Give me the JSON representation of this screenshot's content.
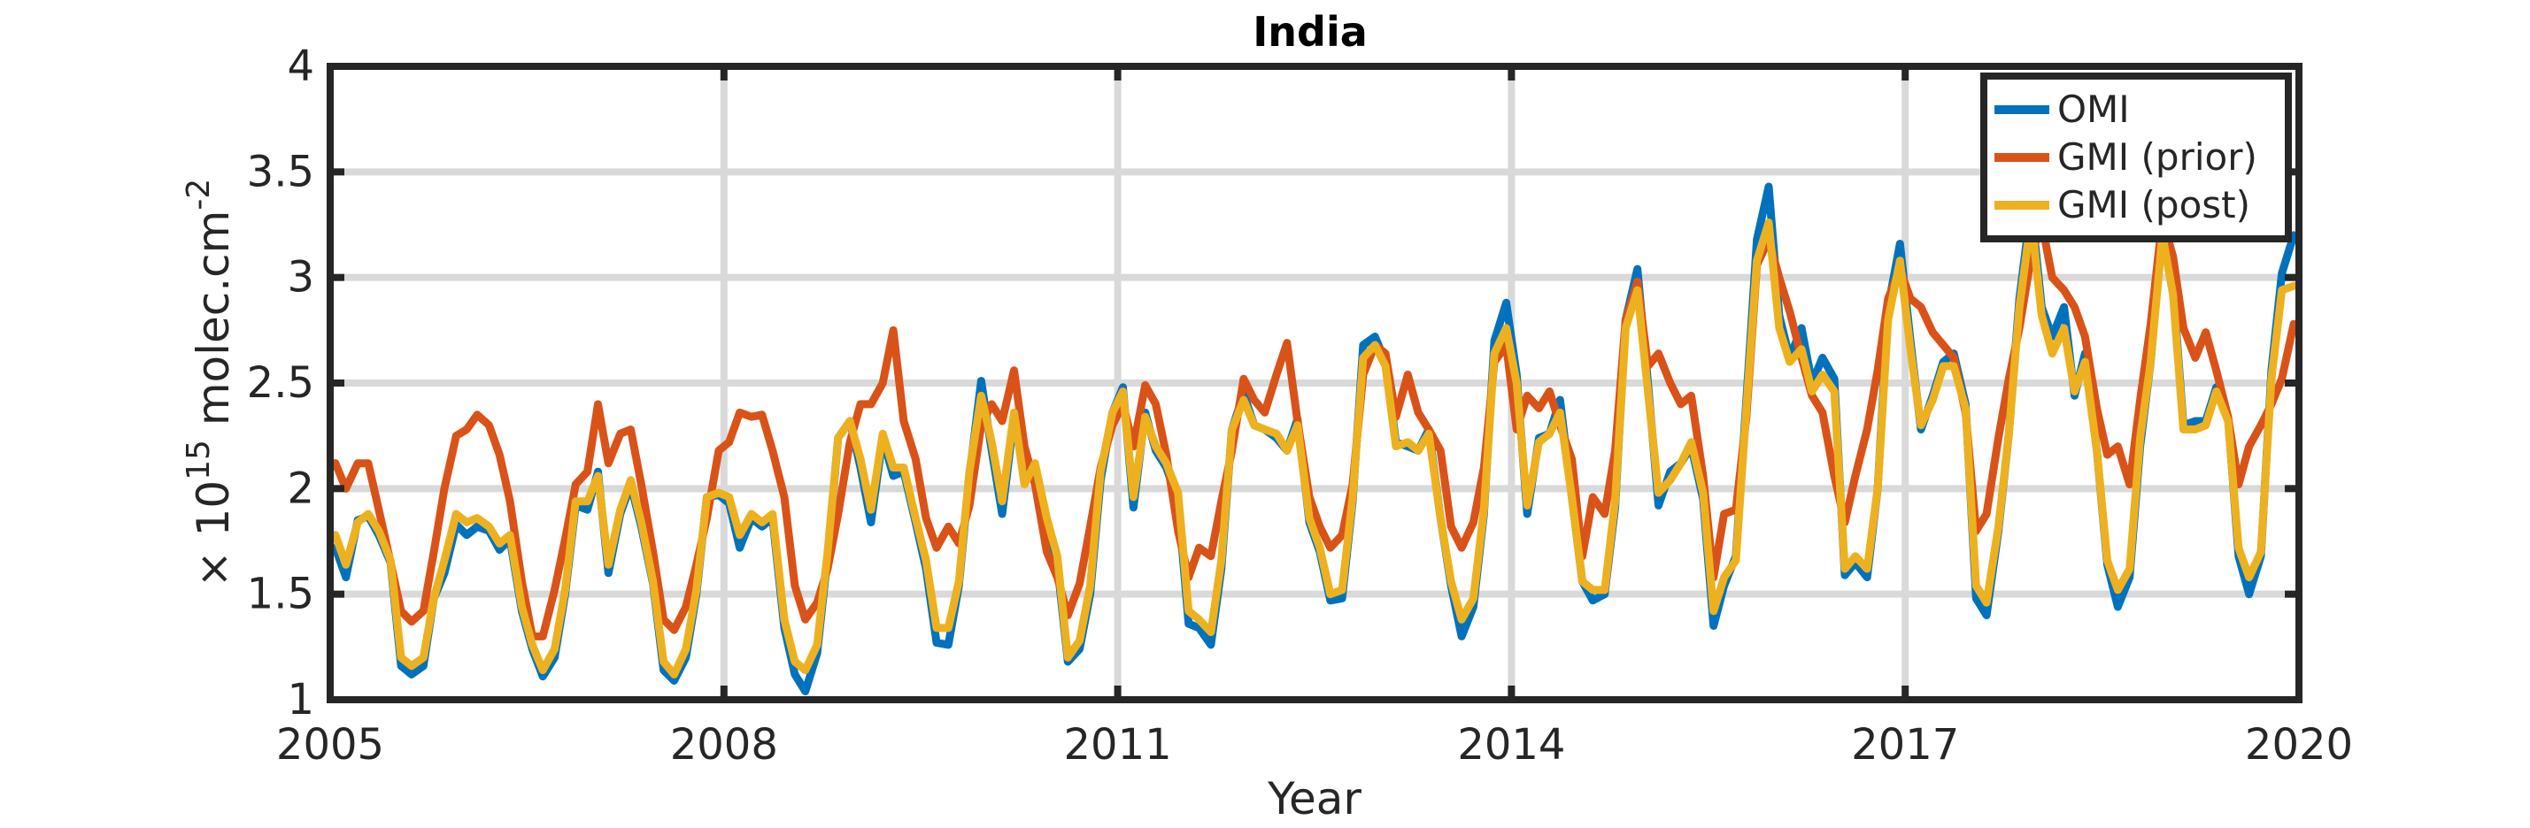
{
  "chart_data": {
    "type": "line",
    "title": "India",
    "xlabel": "Year",
    "ylabel": {
      "prefix": "× 10",
      "exponent": "15",
      "unit": " molec.cm",
      "unit_exponent": "-2"
    },
    "xlim": [
      2005,
      2020
    ],
    "ylim": [
      1,
      4
    ],
    "xticks": [
      2005,
      2008,
      2011,
      2014,
      2017,
      2020
    ],
    "yticks": [
      1,
      1.5,
      2,
      2.5,
      3,
      3.5,
      4
    ],
    "ytick_labels": [
      "1",
      "1.5",
      "2",
      "2.5",
      "3",
      "3.5",
      "4"
    ],
    "grid": true,
    "legend_position": "top-right",
    "x": [
      2005.04,
      2005.12,
      2005.21,
      2005.29,
      2005.37,
      2005.46,
      2005.54,
      2005.62,
      2005.71,
      2005.79,
      2005.87,
      2005.96,
      2006.04,
      2006.12,
      2006.21,
      2006.29,
      2006.37,
      2006.46,
      2006.54,
      2006.62,
      2006.71,
      2006.79,
      2006.87,
      2006.96,
      2007.04,
      2007.12,
      2007.21,
      2007.29,
      2007.37,
      2007.46,
      2007.54,
      2007.62,
      2007.71,
      2007.79,
      2007.87,
      2007.96,
      2008.04,
      2008.12,
      2008.21,
      2008.29,
      2008.37,
      2008.46,
      2008.54,
      2008.62,
      2008.71,
      2008.79,
      2008.87,
      2008.96,
      2009.04,
      2009.12,
      2009.21,
      2009.29,
      2009.37,
      2009.46,
      2009.54,
      2009.62,
      2009.71,
      2009.79,
      2009.87,
      2009.96,
      2010.04,
      2010.12,
      2010.21,
      2010.29,
      2010.37,
      2010.46,
      2010.54,
      2010.62,
      2010.71,
      2010.79,
      2010.87,
      2010.96,
      2011.04,
      2011.12,
      2011.21,
      2011.29,
      2011.37,
      2011.46,
      2011.54,
      2011.62,
      2011.71,
      2011.79,
      2011.87,
      2011.96,
      2012.04,
      2012.12,
      2012.21,
      2012.29,
      2012.37,
      2012.46,
      2012.54,
      2012.62,
      2012.71,
      2012.79,
      2012.87,
      2012.96,
      2013.04,
      2013.12,
      2013.21,
      2013.29,
      2013.37,
      2013.46,
      2013.54,
      2013.62,
      2013.71,
      2013.79,
      2013.87,
      2013.96,
      2014.04,
      2014.12,
      2014.21,
      2014.29,
      2014.37,
      2014.46,
      2014.54,
      2014.62,
      2014.71,
      2014.79,
      2014.87,
      2014.96,
      2015.04,
      2015.12,
      2015.21,
      2015.29,
      2015.37,
      2015.46,
      2015.54,
      2015.62,
      2015.71,
      2015.79,
      2015.87,
      2015.96,
      2016.04,
      2016.12,
      2016.21,
      2016.29,
      2016.37,
      2016.46,
      2016.54,
      2016.62,
      2016.71,
      2016.79,
      2016.87,
      2016.96,
      2017.04,
      2017.12,
      2017.21,
      2017.29,
      2017.37,
      2017.46,
      2017.54,
      2017.62,
      2017.71,
      2017.79,
      2017.87,
      2017.96,
      2018.04,
      2018.12,
      2018.21,
      2018.29,
      2018.37,
      2018.46,
      2018.54,
      2018.62,
      2018.71,
      2018.79,
      2018.87,
      2018.96,
      2019.04,
      2019.12,
      2019.21,
      2019.29,
      2019.37,
      2019.46,
      2019.54,
      2019.62,
      2019.71,
      2019.79,
      2019.87,
      2019.96
    ],
    "series": [
      {
        "name": "OMI",
        "color": "#0072BD",
        "values": [
          1.72,
          1.58,
          1.85,
          1.87,
          1.78,
          1.65,
          1.16,
          1.12,
          1.16,
          1.48,
          1.6,
          1.83,
          1.78,
          1.82,
          1.8,
          1.71,
          1.76,
          1.42,
          1.24,
          1.11,
          1.2,
          1.5,
          1.92,
          1.9,
          2.08,
          1.6,
          1.88,
          2.02,
          1.82,
          1.55,
          1.14,
          1.09,
          1.2,
          1.5,
          1.96,
          1.97,
          1.93,
          1.72,
          1.86,
          1.82,
          1.86,
          1.34,
          1.12,
          1.04,
          1.22,
          1.68,
          2.24,
          2.32,
          2.1,
          1.84,
          2.24,
          2.06,
          2.08,
          1.84,
          1.62,
          1.27,
          1.26,
          1.54,
          2.06,
          2.51,
          2.18,
          1.88,
          2.34,
          2.06,
          2.1,
          1.82,
          1.64,
          1.18,
          1.24,
          1.5,
          2.04,
          2.36,
          2.48,
          1.91,
          2.36,
          2.18,
          2.1,
          1.94,
          1.36,
          1.34,
          1.26,
          1.62,
          2.28,
          2.45,
          2.3,
          2.28,
          2.24,
          2.18,
          2.33,
          1.84,
          1.7,
          1.47,
          1.48,
          1.94,
          2.68,
          2.72,
          2.6,
          2.22,
          2.2,
          2.18,
          2.28,
          1.86,
          1.54,
          1.3,
          1.44,
          1.88,
          2.7,
          2.88,
          2.54,
          1.88,
          2.24,
          2.26,
          2.42,
          1.96,
          1.56,
          1.47,
          1.5,
          1.91,
          2.8,
          3.04,
          2.5,
          1.92,
          2.08,
          2.12,
          2.2,
          1.95,
          1.35,
          1.54,
          1.68,
          2.42,
          3.18,
          3.43,
          2.82,
          2.62,
          2.76,
          2.5,
          2.62,
          2.52,
          1.59,
          1.65,
          1.58,
          2.0,
          2.86,
          3.16,
          2.7,
          2.28,
          2.44,
          2.6,
          2.64,
          2.4,
          1.48,
          1.4,
          1.8,
          2.26,
          2.9,
          3.34,
          2.86,
          2.72,
          2.86,
          2.44,
          2.64,
          2.18,
          1.64,
          1.44,
          1.58,
          2.2,
          2.6,
          3.26,
          2.96,
          2.3,
          2.32,
          2.32,
          2.48,
          2.34,
          1.68,
          1.5,
          1.68,
          2.56,
          3.02,
          3.2
        ]
      },
      {
        "name": "GMI (prior)",
        "color": "#D95319",
        "values": [
          2.12,
          2.0,
          2.12,
          2.12,
          1.9,
          1.65,
          1.42,
          1.37,
          1.42,
          1.7,
          2.0,
          2.25,
          2.28,
          2.35,
          2.3,
          2.16,
          1.94,
          1.56,
          1.3,
          1.3,
          1.52,
          1.76,
          2.02,
          2.08,
          2.4,
          2.12,
          2.26,
          2.28,
          2.02,
          1.7,
          1.38,
          1.33,
          1.44,
          1.64,
          1.86,
          2.18,
          2.22,
          2.36,
          2.34,
          2.35,
          2.18,
          1.96,
          1.54,
          1.38,
          1.46,
          1.62,
          1.88,
          2.22,
          2.4,
          2.4,
          2.5,
          2.75,
          2.32,
          2.14,
          1.86,
          1.72,
          1.82,
          1.74,
          1.92,
          2.3,
          2.4,
          2.32,
          2.56,
          2.2,
          2.02,
          1.7,
          1.58,
          1.4,
          1.55,
          1.82,
          2.1,
          2.3,
          2.4,
          2.2,
          2.49,
          2.4,
          2.16,
          1.8,
          1.58,
          1.72,
          1.68,
          1.94,
          2.18,
          2.52,
          2.42,
          2.36,
          2.54,
          2.69,
          2.32,
          1.96,
          1.82,
          1.72,
          1.78,
          2.02,
          2.54,
          2.68,
          2.64,
          2.34,
          2.54,
          2.36,
          2.28,
          2.18,
          1.82,
          1.72,
          1.84,
          2.1,
          2.6,
          2.68,
          2.28,
          2.44,
          2.38,
          2.46,
          2.3,
          2.14,
          1.68,
          1.96,
          1.88,
          2.18,
          2.8,
          2.98,
          2.58,
          2.64,
          2.5,
          2.4,
          2.44,
          2.06,
          1.58,
          1.88,
          1.9,
          2.34,
          3.06,
          3.18,
          3.0,
          2.84,
          2.62,
          2.44,
          2.36,
          2.06,
          1.84,
          2.06,
          2.28,
          2.56,
          2.9,
          3.04,
          2.9,
          2.86,
          2.74,
          2.68,
          2.62,
          2.36,
          1.8,
          1.88,
          2.24,
          2.52,
          2.76,
          3.1,
          3.26,
          3.0,
          2.94,
          2.86,
          2.72,
          2.38,
          2.16,
          2.2,
          2.02,
          2.42,
          2.78,
          3.28,
          3.1,
          2.76,
          2.62,
          2.74,
          2.56,
          2.34,
          2.02,
          2.2,
          2.3,
          2.4,
          2.52,
          2.78
        ]
      },
      {
        "name": "GMI (post)",
        "color": "#EDB120",
        "values": [
          1.78,
          1.64,
          1.84,
          1.88,
          1.8,
          1.66,
          1.2,
          1.16,
          1.2,
          1.48,
          1.66,
          1.88,
          1.84,
          1.86,
          1.82,
          1.74,
          1.78,
          1.44,
          1.26,
          1.14,
          1.24,
          1.52,
          1.94,
          1.94,
          2.06,
          1.64,
          1.9,
          2.04,
          1.84,
          1.56,
          1.18,
          1.12,
          1.24,
          1.52,
          1.96,
          1.98,
          1.96,
          1.78,
          1.88,
          1.84,
          1.88,
          1.38,
          1.18,
          1.14,
          1.26,
          1.7,
          2.24,
          2.32,
          2.14,
          1.9,
          2.26,
          2.1,
          2.1,
          1.86,
          1.66,
          1.34,
          1.34,
          1.56,
          2.08,
          2.44,
          2.22,
          1.94,
          2.36,
          2.02,
          2.12,
          1.86,
          1.68,
          1.2,
          1.28,
          1.54,
          2.08,
          2.36,
          2.46,
          1.96,
          2.34,
          2.2,
          2.12,
          1.98,
          1.42,
          1.38,
          1.32,
          1.66,
          2.28,
          2.42,
          2.3,
          2.28,
          2.26,
          2.18,
          2.3,
          1.86,
          1.72,
          1.5,
          1.52,
          1.96,
          2.62,
          2.68,
          2.58,
          2.2,
          2.22,
          2.18,
          2.26,
          1.86,
          1.56,
          1.38,
          1.48,
          1.9,
          2.64,
          2.76,
          2.5,
          1.92,
          2.22,
          2.26,
          2.36,
          1.96,
          1.56,
          1.52,
          1.52,
          1.94,
          2.76,
          2.94,
          2.46,
          1.98,
          2.04,
          2.12,
          2.22,
          1.98,
          1.42,
          1.58,
          1.66,
          2.38,
          3.08,
          3.26,
          2.76,
          2.6,
          2.66,
          2.46,
          2.54,
          2.46,
          1.62,
          1.68,
          1.62,
          2.0,
          2.8,
          3.08,
          2.66,
          2.3,
          2.42,
          2.58,
          2.58,
          2.38,
          1.54,
          1.46,
          1.82,
          2.26,
          2.86,
          3.28,
          2.82,
          2.64,
          2.76,
          2.46,
          2.6,
          2.18,
          1.66,
          1.52,
          1.62,
          2.24,
          2.6,
          3.2,
          2.92,
          2.28,
          2.28,
          2.3,
          2.46,
          2.32,
          1.72,
          1.58,
          1.7,
          2.52,
          2.94,
          2.96
        ]
      }
    ]
  }
}
